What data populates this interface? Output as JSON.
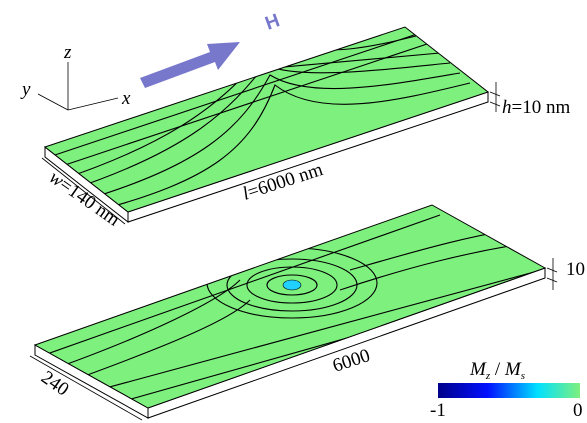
{
  "field_arrow": {
    "label": "H"
  },
  "axes": {
    "z": "z",
    "y": "y",
    "x": "x"
  },
  "top_slab": {
    "height": {
      "symbol": "h",
      "text": "=10 nm"
    },
    "length": {
      "symbol": "l",
      "text": "=6000 nm"
    },
    "width": {
      "symbol": "w",
      "text": "=140 nm"
    }
  },
  "bottom_slab": {
    "height": "10",
    "length": "6000",
    "width": "240"
  },
  "colorbar": {
    "title": {
      "numerator": "M",
      "numerator_sub": "z",
      "separator": " / ",
      "denominator": "M",
      "denominator_sub": "s"
    },
    "min_label": "-1",
    "max_label": "0"
  }
}
